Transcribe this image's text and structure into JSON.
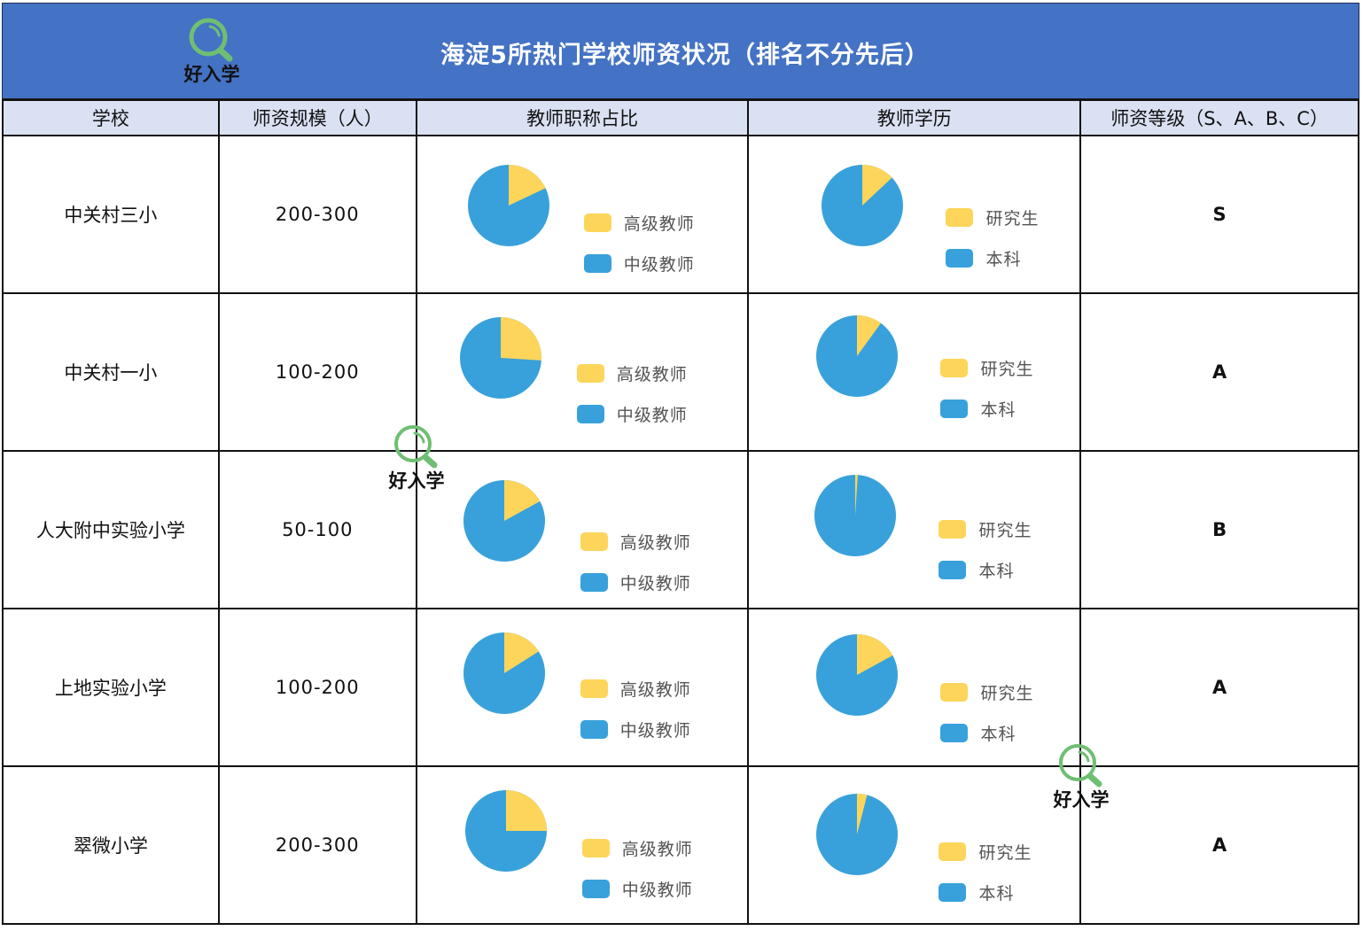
{
  "header": {
    "title": "海淀5所热门学校师资状况（排名不分先后）",
    "logo_text": "好入学",
    "background": "#4472c4"
  },
  "table": {
    "columns": [
      "学校",
      "师资规模（人）",
      "教师职称占比",
      "教师学历",
      "师资等级（S、A、B、C）"
    ],
    "rows": [
      {
        "school": "中关村三小",
        "size": "200-300",
        "grade": "S"
      },
      {
        "school": "中关村一小",
        "size": "100-200",
        "grade": "A"
      },
      {
        "school": "人大附中实验小学",
        "size": "50-100",
        "grade": "B"
      },
      {
        "school": "上地实验小学",
        "size": "100-200",
        "grade": "A"
      },
      {
        "school": "翠微小学",
        "size": "200-300",
        "grade": "A"
      }
    ]
  },
  "legend": {
    "title_series": [
      "高级教师",
      "中级教师"
    ],
    "edu_series": [
      "研究生",
      "本科"
    ]
  },
  "colors": {
    "yellow": "#fdd55a",
    "blue": "#38a1db",
    "header_row": "#d9e1f2",
    "watermark_green": "#6fbf73"
  },
  "watermarks": [
    {
      "text": "好入学"
    },
    {
      "text": "好入学"
    }
  ],
  "chart_data": [
    {
      "type": "pie",
      "title": "教师职称占比",
      "categories": [
        "高级教师",
        "中级教师"
      ],
      "series": [
        {
          "name": "中关村三小",
          "values": [
            18,
            82
          ]
        },
        {
          "name": "中关村一小",
          "values": [
            26,
            74
          ]
        },
        {
          "name": "人大附中实验小学",
          "values": [
            17,
            83
          ]
        },
        {
          "name": "上地实验小学",
          "values": [
            16,
            84
          ]
        },
        {
          "name": "翠微小学",
          "values": [
            25,
            75
          ]
        }
      ],
      "legend_position": "right"
    },
    {
      "type": "pie",
      "title": "教师学历",
      "categories": [
        "研究生",
        "本科"
      ],
      "series": [
        {
          "name": "中关村三小",
          "values": [
            13,
            87
          ]
        },
        {
          "name": "中关村一小",
          "values": [
            10,
            90
          ]
        },
        {
          "name": "人大附中实验小学",
          "values": [
            1,
            99
          ]
        },
        {
          "name": "上地实验小学",
          "values": [
            17,
            83
          ]
        },
        {
          "name": "翠微小学",
          "values": [
            4,
            96
          ]
        }
      ],
      "legend_position": "right"
    }
  ]
}
